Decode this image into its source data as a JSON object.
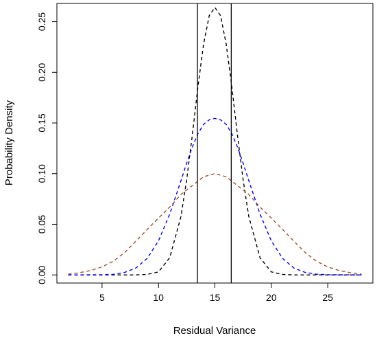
{
  "chart_data": {
    "type": "line",
    "title": "",
    "xlabel": "Residual Variance",
    "ylabel": "Probability Density",
    "xlim": [
      1,
      29
    ],
    "ylim": [
      -0.008,
      0.268
    ],
    "xticks": [
      5,
      10,
      15,
      20,
      25
    ],
    "yticks": [
      0.0,
      0.05,
      0.1,
      0.15,
      0.2,
      0.25
    ],
    "ytick_labels": [
      "0.00",
      "0.05",
      "0.10",
      "0.15",
      "0.20",
      "0.25"
    ],
    "grid": false,
    "legend": "none",
    "vertical_lines": [
      13.45,
      16.45
    ],
    "vertical_line_color": "#000000",
    "series": [
      {
        "color": "#000000",
        "style": "dashed",
        "x": [
          2,
          8,
          9,
          10,
          11,
          12,
          12.5,
          13,
          13.5,
          14,
          14.5,
          15,
          15.5,
          16,
          16.5,
          17,
          17.5,
          18,
          19,
          20,
          21,
          22,
          28
        ],
        "y": [
          0.0,
          0.0,
          0.0005,
          0.003,
          0.017,
          0.058,
          0.094,
          0.138,
          0.186,
          0.228,
          0.256,
          0.264,
          0.256,
          0.228,
          0.186,
          0.138,
          0.094,
          0.058,
          0.017,
          0.003,
          0.0005,
          0.0,
          0.0
        ]
      },
      {
        "color": "#0000ff",
        "style": "dashed",
        "x": [
          2,
          5,
          6,
          7,
          8,
          9,
          10,
          11,
          12,
          12.5,
          13,
          13.5,
          14,
          14.5,
          15,
          15.5,
          16,
          16.5,
          17,
          17.5,
          18,
          19,
          20,
          21,
          22,
          23,
          24,
          25,
          28
        ],
        "y": [
          0.0,
          0.0002,
          0.0006,
          0.0025,
          0.0068,
          0.0163,
          0.0336,
          0.0601,
          0.0932,
          0.1104,
          0.1263,
          0.1395,
          0.1487,
          0.1531,
          0.1545,
          0.1531,
          0.1487,
          0.1395,
          0.1263,
          0.1104,
          0.0932,
          0.0601,
          0.0336,
          0.0163,
          0.0068,
          0.0025,
          0.0008,
          0.0002,
          0.0
        ]
      },
      {
        "color": "#a0522d",
        "style": "dashed",
        "x": [
          2,
          3,
          4,
          5,
          6,
          7,
          8,
          9,
          10,
          11,
          12,
          13,
          14,
          15,
          16,
          17,
          18,
          19,
          20,
          21,
          22,
          23,
          24,
          25,
          26,
          27,
          28
        ],
        "y": [
          0.0008,
          0.0022,
          0.0044,
          0.0079,
          0.0135,
          0.0221,
          0.0333,
          0.0449,
          0.0561,
          0.067,
          0.0795,
          0.0882,
          0.0969,
          0.1,
          0.0969,
          0.0882,
          0.0795,
          0.067,
          0.0561,
          0.0449,
          0.0333,
          0.0221,
          0.0135,
          0.0079,
          0.0044,
          0.0022,
          0.0008
        ]
      }
    ]
  }
}
